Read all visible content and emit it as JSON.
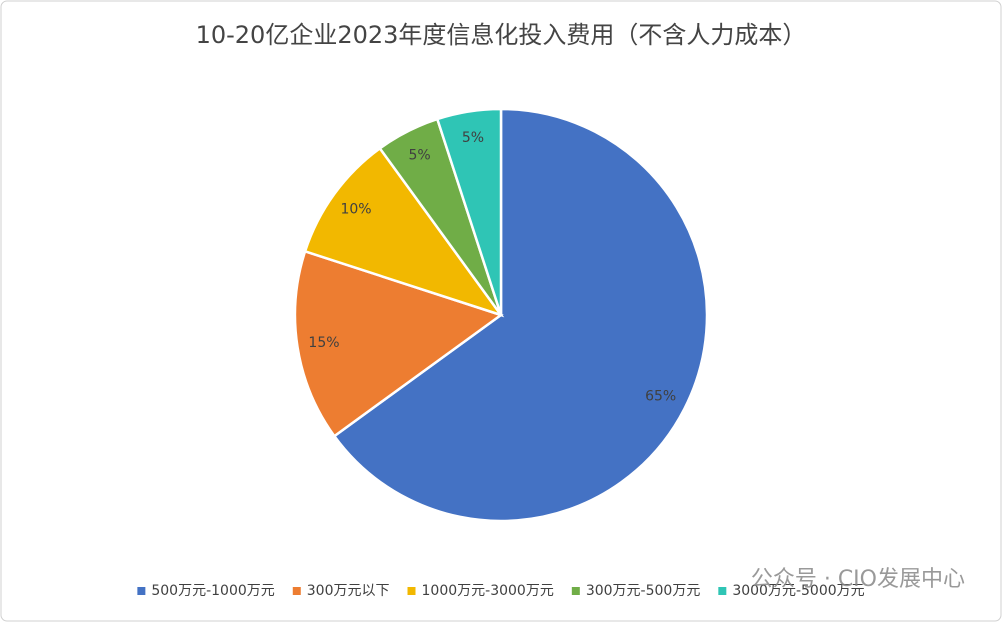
{
  "chart_data": {
    "type": "pie",
    "title": "10-20亿企业2023年度信息化投入费用（不含人力成本）",
    "categories": [
      "500万元-1000万元",
      "300万元以下",
      "1000万元-3000万元",
      "300万元-500万元",
      "3000万元-5000万元"
    ],
    "values": [
      65,
      15,
      10,
      5,
      5
    ],
    "value_labels": [
      "65%",
      "15%",
      "10%",
      "5%",
      "5%"
    ],
    "colors": [
      "#4472c4",
      "#ed7d31",
      "#f2b800",
      "#70ad47",
      "#2fc5b5"
    ],
    "legend": "bottom",
    "watermark": "公众号 · CIO发展中心"
  }
}
